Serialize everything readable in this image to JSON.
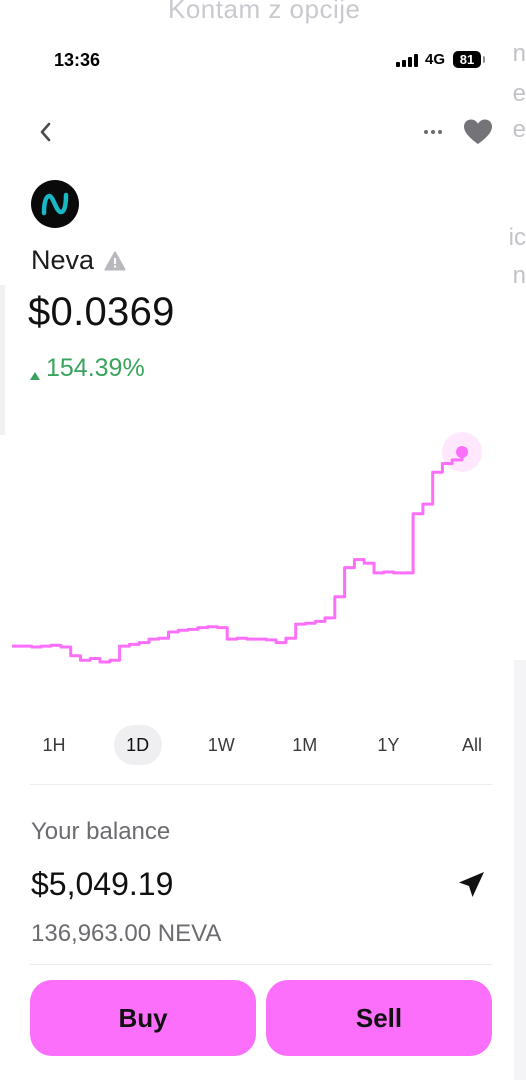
{
  "background": {
    "top_text": "Kontam z opcije",
    "edge_letters": [
      "n",
      "e",
      "e",
      "ic",
      "n"
    ]
  },
  "status_bar": {
    "time": "13:36",
    "network": "4G",
    "battery": "81"
  },
  "nav": {
    "back_icon": "chevron-left-icon",
    "more_icon": "ellipsis-icon",
    "favorite_icon": "heart-icon"
  },
  "token": {
    "name": "Neva",
    "logo_icon": "neva-logo-icon",
    "warning_icon": "warning-triangle-icon",
    "price": "$0.0369",
    "change": "154.39%",
    "change_direction": "up",
    "accent_color": "#fc6ffb",
    "positive_color": "#3aa35c"
  },
  "chart_data": {
    "type": "line",
    "series": [
      {
        "values": [
          0.0149,
          0.0149,
          0.0148,
          0.0149,
          0.015,
          0.0148,
          0.0138,
          0.0133,
          0.0135,
          0.0131,
          0.0133,
          0.0149,
          0.0151,
          0.0153,
          0.0157,
          0.0158,
          0.0165,
          0.0167,
          0.0168,
          0.017,
          0.0171,
          0.017,
          0.0157,
          0.0158,
          0.0157,
          0.0157,
          0.0156,
          0.0153,
          0.0158,
          0.0174,
          0.0175,
          0.0177,
          0.0181,
          0.0205,
          0.0238,
          0.0247,
          0.0243,
          0.0232,
          0.0233,
          0.0232,
          0.0232,
          0.0299,
          0.031,
          0.0346,
          0.0356,
          0.036,
          0.0369
        ]
      }
    ],
    "current_value": 0.0369,
    "grid": false,
    "color": "#fc6ffb"
  },
  "range_tabs": [
    {
      "label": "1H",
      "active": false
    },
    {
      "label": "1D",
      "active": true
    },
    {
      "label": "1W",
      "active": false
    },
    {
      "label": "1M",
      "active": false
    },
    {
      "label": "1Y",
      "active": false
    },
    {
      "label": "All",
      "active": false
    }
  ],
  "balance": {
    "label": "Your balance",
    "value": "$5,049.19",
    "tokens": "136,963.00 NEVA",
    "send_icon": "paper-plane-icon"
  },
  "actions": {
    "buy_label": "Buy",
    "sell_label": "Sell"
  }
}
